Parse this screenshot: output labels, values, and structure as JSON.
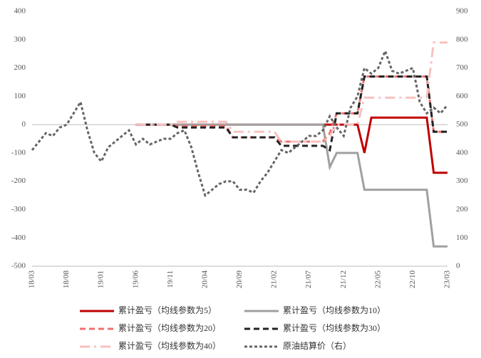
{
  "chart_data": {
    "type": "line",
    "categories": [
      "18/03",
      null,
      null,
      null,
      null,
      "18/08",
      null,
      null,
      null,
      null,
      "19/01",
      null,
      null,
      null,
      null,
      "19/06",
      null,
      null,
      null,
      null,
      "19/11",
      null,
      null,
      null,
      null,
      "20/04",
      null,
      null,
      null,
      null,
      "20/09",
      null,
      null,
      null,
      null,
      "21/02",
      null,
      null,
      null,
      null,
      "21/07",
      null,
      null,
      null,
      null,
      "21/12",
      null,
      null,
      null,
      null,
      "22/05",
      null,
      null,
      null,
      null,
      "22/10",
      null,
      null,
      null,
      null,
      "23/03"
    ],
    "ylim": [
      -500,
      400
    ],
    "yticks": [
      -500,
      -400,
      -300,
      -200,
      -100,
      0,
      100,
      200,
      300,
      400
    ],
    "y2lim": [
      0,
      900
    ],
    "y2ticks": [
      0,
      100,
      200,
      300,
      400,
      500,
      600,
      700,
      800,
      900
    ],
    "series": [
      {
        "name": "累计盈亏（均线参数为5）",
        "color": "#c00000",
        "dash": "solid",
        "values": [
          null,
          null,
          null,
          null,
          null,
          null,
          null,
          null,
          null,
          null,
          null,
          null,
          null,
          null,
          null,
          0,
          0,
          0,
          0,
          0,
          0,
          0,
          0,
          0,
          0,
          0,
          0,
          0,
          0,
          0,
          0,
          0,
          0,
          0,
          0,
          0,
          0,
          0,
          0,
          0,
          0,
          0,
          0,
          0,
          0,
          0,
          0,
          0,
          -100,
          25,
          25,
          25,
          25,
          25,
          25,
          25,
          25,
          25,
          -170,
          -170,
          -170
        ]
      },
      {
        "name": "累计盈亏（均线参数为10）",
        "color": "#a0a0a0",
        "dash": "solid",
        "values": [
          null,
          null,
          null,
          null,
          null,
          null,
          null,
          null,
          null,
          null,
          null,
          null,
          null,
          null,
          null,
          0,
          0,
          0,
          0,
          0,
          0,
          0,
          0,
          0,
          0,
          0,
          0,
          0,
          0,
          0,
          0,
          0,
          0,
          0,
          0,
          0,
          0,
          0,
          0,
          0,
          0,
          0,
          0,
          -150,
          -100,
          -100,
          -100,
          -100,
          -230,
          -230,
          -230,
          -230,
          -230,
          -230,
          -230,
          -230,
          -230,
          -230,
          -430,
          -430,
          -430
        ]
      },
      {
        "name": "累计盈亏（均线参数为20）",
        "color": "#f07070",
        "dash": "dash",
        "values": [
          null,
          null,
          null,
          null,
          null,
          null,
          null,
          null,
          null,
          null,
          null,
          null,
          null,
          null,
          null,
          0,
          0,
          0,
          0,
          0,
          0,
          -5,
          -5,
          -5,
          -5,
          -5,
          -5,
          -5,
          -5,
          -45,
          -45,
          -45,
          -45,
          -45,
          -45,
          -45,
          -60,
          -60,
          -60,
          -60,
          -60,
          -60,
          -60,
          -30,
          40,
          40,
          40,
          40,
          170,
          170,
          170,
          170,
          170,
          170,
          170,
          170,
          170,
          170,
          -25,
          -25,
          -25
        ]
      },
      {
        "name": "累计盈亏（均线参数为30）",
        "color": "#222222",
        "dash": "dash",
        "values": [
          null,
          null,
          null,
          null,
          null,
          null,
          null,
          null,
          null,
          null,
          null,
          null,
          null,
          null,
          null,
          0,
          0,
          0,
          0,
          0,
          0,
          -10,
          -10,
          -10,
          -10,
          -10,
          -10,
          -10,
          -10,
          -45,
          -45,
          -45,
          -45,
          -45,
          -45,
          -45,
          -75,
          -75,
          -75,
          -75,
          -75,
          -75,
          -75,
          -90,
          40,
          40,
          40,
          40,
          170,
          170,
          170,
          170,
          170,
          170,
          170,
          170,
          170,
          170,
          -25,
          -25,
          -25
        ]
      },
      {
        "name": "累计盈亏（均线参数为40）",
        "color": "#f8c0c0",
        "dash": "dashdot",
        "values": [
          null,
          null,
          null,
          null,
          null,
          null,
          null,
          null,
          null,
          null,
          null,
          null,
          null,
          null,
          null,
          0,
          0,
          0,
          0,
          0,
          0,
          10,
          10,
          10,
          10,
          10,
          10,
          10,
          10,
          -25,
          -25,
          -25,
          -25,
          -25,
          -25,
          -25,
          -60,
          -60,
          -60,
          -60,
          -60,
          -60,
          -60,
          -40,
          0,
          0,
          0,
          0,
          95,
          95,
          95,
          95,
          95,
          95,
          95,
          95,
          95,
          95,
          290,
          290,
          290
        ]
      },
      {
        "name": "原油结算价（右）",
        "color": "#666666",
        "dash": "dot",
        "axis": "y2",
        "values": [
          410,
          440,
          470,
          460,
          490,
          500,
          540,
          580,
          480,
          400,
          370,
          420,
          440,
          460,
          480,
          430,
          450,
          430,
          440,
          450,
          450,
          470,
          480,
          420,
          330,
          250,
          270,
          290,
          300,
          300,
          270,
          270,
          260,
          300,
          330,
          370,
          410,
          400,
          420,
          440,
          460,
          460,
          480,
          530,
          490,
          460,
          560,
          600,
          700,
          680,
          700,
          760,
          690,
          680,
          690,
          700,
          580,
          540,
          560,
          540,
          570
        ]
      }
    ]
  }
}
